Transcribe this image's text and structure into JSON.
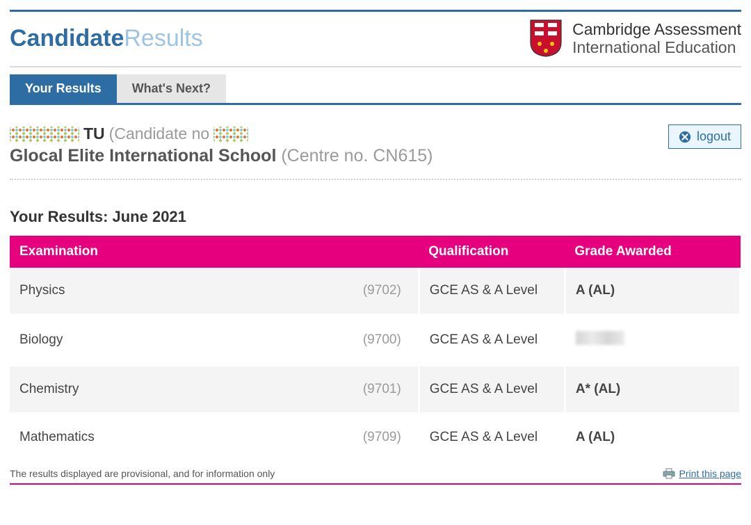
{
  "brand": {
    "part1": "Candidate",
    "part2": "Results"
  },
  "org": {
    "line1": "Cambridge Assessment",
    "line2": "International Education",
    "shield_colors": {
      "main": "#C8102E",
      "accent": "#F1C40F",
      "border": "#222"
    }
  },
  "tabs": [
    {
      "label": "Your Results",
      "active": true
    },
    {
      "label": "What's Next?",
      "active": false
    }
  ],
  "candidate": {
    "surname": "TU",
    "candidate_no_prefix": "(Candidate no",
    "school": "Glocal Elite International School",
    "centre_label": "(Centre no. CN615)"
  },
  "logout_label": "logout",
  "results_title": "Your Results: June 2021",
  "table": {
    "headers": {
      "exam": "Examination",
      "qual": "Qualification",
      "grade": "Grade Awarded"
    },
    "qualification_text": "GCE AS & A Level",
    "rows": [
      {
        "name": "Physics",
        "code": "(9702)",
        "grade": "A (AL)",
        "alt": true,
        "redacted": false
      },
      {
        "name": "Biology",
        "code": "(9700)",
        "grade": "",
        "alt": false,
        "redacted": true
      },
      {
        "name": "Chemistry",
        "code": "(9701)",
        "grade": "A* (AL)",
        "alt": true,
        "redacted": false
      },
      {
        "name": "Mathematics",
        "code": "(9709)",
        "grade": "A (AL)",
        "alt": false,
        "redacted": false
      }
    ]
  },
  "footer": {
    "disclaimer": "The results displayed are provisional, and for information only",
    "print_label": "Print this page"
  },
  "colors": {
    "primary": "#2E6DA4",
    "header_pink": "#E6007E",
    "muted": "#9a9a9a",
    "row_alt": "#f4f4f4"
  }
}
